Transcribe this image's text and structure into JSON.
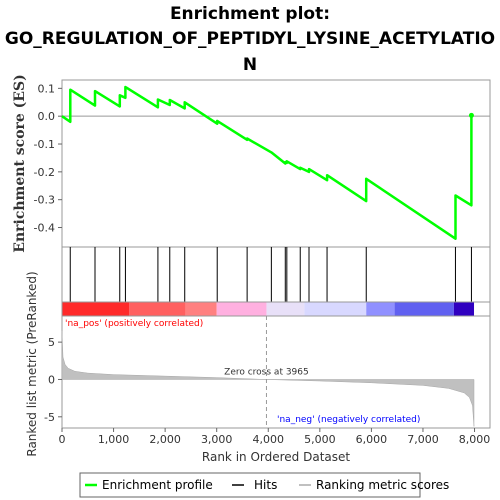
{
  "chart_data": {
    "type": "line",
    "title_lines": [
      "Enrichment plot:",
      "GO_REGULATION_OF_PEPTIDYL_LYSINE_ACETYLATIO",
      "N"
    ],
    "es_ylabel": "Enrichment score (ES)",
    "metric_ylabel": "Ranked list metric (PreRanked)",
    "xlabel": "Rank in Ordered Dataset",
    "xlim": [
      0,
      8300
    ],
    "es_ylim": [
      -0.47,
      0.13
    ],
    "metric_ylim": [
      -6.5,
      8.5
    ],
    "x_ticks": [
      0,
      1000,
      2000,
      3000,
      4000,
      5000,
      6000,
      7000,
      8000
    ],
    "x_tick_labels": [
      "0",
      "1,000",
      "2,000",
      "3,000",
      "4,000",
      "5,000",
      "6,000",
      "7,000",
      "8,000"
    ],
    "es_ticks": [
      0.1,
      0.0,
      -0.1,
      -0.2,
      -0.3,
      -0.4
    ],
    "es_tick_labels": [
      "0.1",
      "0.0",
      "-0.1",
      "-0.2",
      "-0.3",
      "-0.4"
    ],
    "metric_ticks": [
      5,
      0,
      -5
    ],
    "metric_tick_labels": [
      "5",
      "0",
      "-5"
    ],
    "hits": [
      160,
      640,
      1120,
      1230,
      1860,
      2090,
      2380,
      3010,
      3590,
      4060,
      4330,
      4360,
      4620,
      4790,
      5140,
      5900,
      7630,
      7940
    ],
    "es_points": [
      [
        0,
        0.0
      ],
      [
        160,
        -0.02
      ],
      [
        160,
        0.095
      ],
      [
        640,
        0.038
      ],
      [
        640,
        0.09
      ],
      [
        1120,
        0.035
      ],
      [
        1120,
        0.075
      ],
      [
        1230,
        0.066
      ],
      [
        1230,
        0.105
      ],
      [
        1860,
        0.032
      ],
      [
        1860,
        0.06
      ],
      [
        2090,
        0.04
      ],
      [
        2090,
        0.058
      ],
      [
        2380,
        0.028
      ],
      [
        2380,
        0.05
      ],
      [
        3010,
        -0.027
      ],
      [
        3010,
        -0.017
      ],
      [
        3590,
        -0.085
      ],
      [
        3590,
        -0.08
      ],
      [
        4060,
        -0.13
      ],
      [
        4330,
        -0.17
      ],
      [
        4330,
        -0.165
      ],
      [
        4360,
        -0.168
      ],
      [
        4360,
        -0.162
      ],
      [
        4620,
        -0.19
      ],
      [
        4620,
        -0.185
      ],
      [
        4790,
        -0.2
      ],
      [
        4790,
        -0.19
      ],
      [
        5140,
        -0.23
      ],
      [
        5140,
        -0.212
      ],
      [
        5900,
        -0.305
      ],
      [
        5900,
        -0.225
      ],
      [
        7630,
        -0.44
      ],
      [
        7630,
        -0.285
      ],
      [
        7940,
        -0.32
      ],
      [
        7940,
        0.0
      ]
    ],
    "es_end_marker": [
      7940,
      0.003
    ],
    "metric_curve": [
      [
        0,
        6.5
      ],
      [
        20,
        3.0
      ],
      [
        60,
        2.0
      ],
      [
        120,
        1.5
      ],
      [
        250,
        1.1
      ],
      [
        500,
        0.85
      ],
      [
        1000,
        0.65
      ],
      [
        2000,
        0.45
      ],
      [
        3000,
        0.25
      ],
      [
        3965,
        0.0
      ],
      [
        5000,
        -0.2
      ],
      [
        6000,
        -0.45
      ],
      [
        7000,
        -0.8
      ],
      [
        7500,
        -1.2
      ],
      [
        7800,
        -1.8
      ],
      [
        7900,
        -2.4
      ],
      [
        7960,
        -3.5
      ],
      [
        7985,
        -6.0
      ],
      [
        7990,
        -6.3
      ]
    ],
    "zero_cross": 3965,
    "zero_cross_label": "Zero cross at 3965",
    "pos_label": "'na_pos' (positively correlated)",
    "neg_label": "'na_neg' (negatively correlated)",
    "legend": [
      "Enrichment profile",
      "Hits",
      "Ranking metric scores"
    ],
    "colors": {
      "es_line": "#00ff00",
      "hit_line": "#000000",
      "metric_fill": "#c0c0c0",
      "pos_label": "#ff0000",
      "neg_label": "#0000ff",
      "heat_strong_pos": "#ff2a2a",
      "heat_mid_pos": "#ff8080",
      "heat_light_pos": "#ffb0e0",
      "heat_neutral": "#f2e8f8",
      "heat_light_neg": "#c0c0ff",
      "heat_mid_neg": "#6060f0",
      "heat_strong_neg": "#3000c0"
    }
  }
}
